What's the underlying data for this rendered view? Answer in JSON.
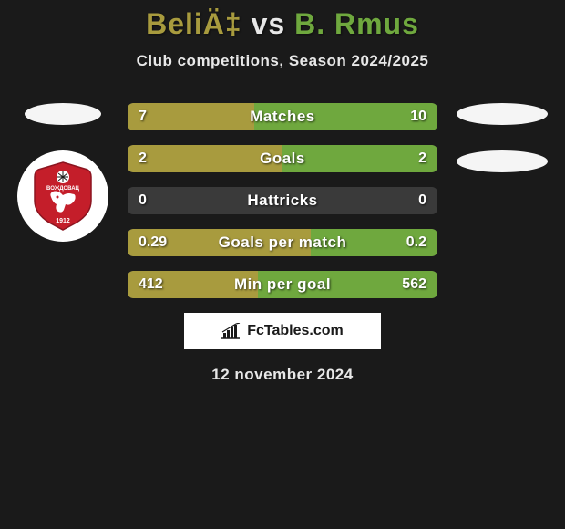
{
  "title": {
    "player1": "BeliÄ‡",
    "vs": "vs",
    "player2": "B. Rmus",
    "player1_color": "#a89b3e",
    "player2_color": "#6fa83e"
  },
  "subtitle": "Club competitions, Season 2024/2025",
  "date": "12 november 2024",
  "attribution_text": "FcTables.com",
  "colors": {
    "background": "#1a1a1a",
    "bar_track": "#3a3a3a",
    "bar_left": "#a89b3e",
    "bar_right": "#6fa83e",
    "text_light": "#e8e8e8",
    "white": "#ffffff",
    "logo_red": "#c41e2a"
  },
  "stats": [
    {
      "label": "Matches",
      "left_value": "7",
      "right_value": "10",
      "left_pct": 41,
      "right_pct": 59
    },
    {
      "label": "Goals",
      "left_value": "2",
      "right_value": "2",
      "left_pct": 50,
      "right_pct": 50
    },
    {
      "label": "Hattricks",
      "left_value": "0",
      "right_value": "0",
      "left_pct": 0,
      "right_pct": 0
    },
    {
      "label": "Goals per match",
      "left_value": "0.29",
      "right_value": "0.2",
      "left_pct": 59,
      "right_pct": 41
    },
    {
      "label": "Min per goal",
      "left_value": "412",
      "right_value": "562",
      "left_pct": 42,
      "right_pct": 58
    }
  ]
}
